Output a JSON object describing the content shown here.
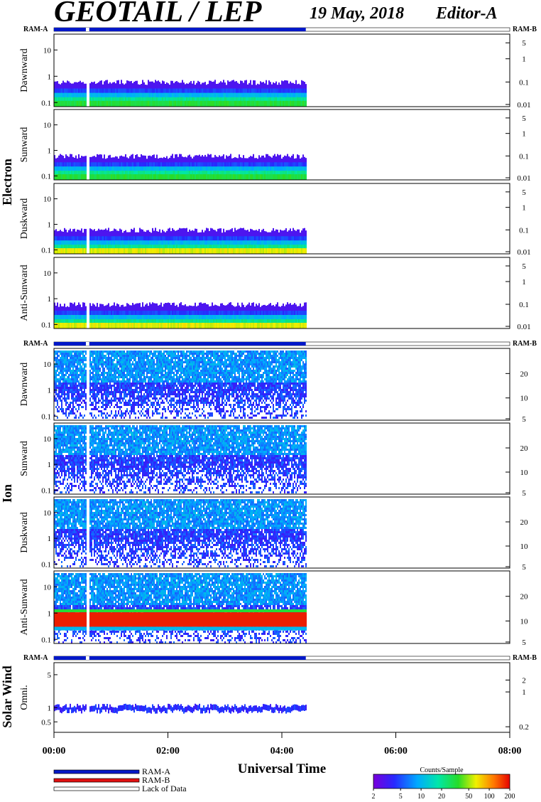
{
  "title": {
    "instrument": "GEOTAIL / LEP",
    "date": "19 May, 2018",
    "editor": "Editor-A"
  },
  "chart_data": {
    "type": "heatmap",
    "xlabel": "Universal Time",
    "x_ticks": [
      "00:00",
      "02:00",
      "04:00",
      "06:00",
      "08:00"
    ],
    "x_range_hours": [
      0,
      8
    ],
    "data_coverage_hours": [
      0.0,
      4.42
    ],
    "data_gap_hours": [
      0.56,
      0.62
    ],
    "groups": [
      {
        "label": "Electron",
        "ram_left": "RAM-A",
        "ram_right": "RAM-B",
        "ram_mode": "RAM-A",
        "panels": [
          {
            "label": "Dawnward",
            "left_ticks": [
              "10",
              "1",
              "0.1"
            ],
            "right_ticks": [
              "5",
              "1",
              "0.1",
              "0.01"
            ]
          },
          {
            "label": "Sunward",
            "left_ticks": [
              "10",
              "1",
              "0.1"
            ],
            "right_ticks": [
              "5",
              "1",
              "0.1",
              "0.01"
            ]
          },
          {
            "label": "Duskward",
            "left_ticks": [
              "10",
              "1",
              "0.1"
            ],
            "right_ticks": [
              "5",
              "1",
              "0.1",
              "0.01"
            ]
          },
          {
            "label": "Anti-Sunward",
            "left_ticks": [
              "10",
              "1",
              "0.1"
            ],
            "right_ticks": [
              "5",
              "1",
              "0.1",
              "0.01"
            ]
          }
        ]
      },
      {
        "label": "Ion",
        "ram_left": "RAM-A",
        "ram_right": "RAM-B",
        "ram_mode": "RAM-A",
        "panels": [
          {
            "label": "Dawnward",
            "left_ticks": [
              "10",
              "1",
              "0.1"
            ],
            "right_ticks": [
              "20",
              "10",
              "5"
            ]
          },
          {
            "label": "Sunward",
            "left_ticks": [
              "10",
              "1",
              "0.1"
            ],
            "right_ticks": [
              "20",
              "10",
              "5"
            ]
          },
          {
            "label": "Duskward",
            "left_ticks": [
              "10",
              "1",
              "0.1"
            ],
            "right_ticks": [
              "20",
              "10",
              "5"
            ]
          },
          {
            "label": "Anti-Sunward",
            "left_ticks": [
              "10",
              "1",
              "0.1"
            ],
            "right_ticks": [
              "20",
              "10",
              "5"
            ]
          }
        ]
      },
      {
        "label": "Solar Wind",
        "ram_left": "RAM-A",
        "ram_right": "RAM-B",
        "ram_mode": "RAM-A",
        "panels": [
          {
            "label": "Omni.",
            "left_ticks": [
              "5",
              "1",
              "0.5"
            ],
            "right_ticks": [
              "2",
              "1",
              "0.2"
            ]
          }
        ]
      }
    ],
    "legend": [
      {
        "label": "RAM-A",
        "color": "#0018c8"
      },
      {
        "label": "RAM-B",
        "color": "#e01010"
      },
      {
        "label": "Lack of Data",
        "color": "#ffffff"
      }
    ],
    "colorbar": {
      "title": "Counts/Sample",
      "ticks": [
        "2",
        "5",
        "10",
        "20",
        "50",
        "100",
        "200"
      ],
      "range": [
        2,
        200
      ],
      "scale": "log"
    }
  }
}
